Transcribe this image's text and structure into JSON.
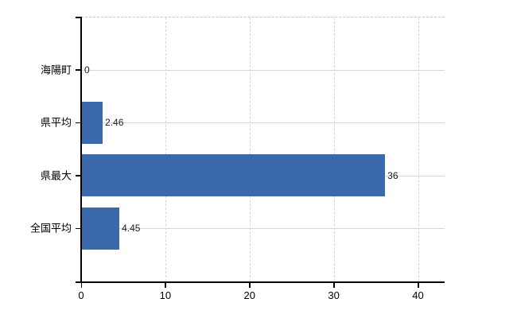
{
  "chart_data": {
    "type": "bar",
    "orientation": "horizontal",
    "title": "",
    "xlabel": "",
    "ylabel": "",
    "categories": [
      "海陽町",
      "県平均",
      "県最大",
      "全国平均"
    ],
    "values": [
      0,
      2.46,
      36,
      4.45
    ],
    "value_labels": [
      "0",
      "2.46",
      "36",
      "4.45"
    ],
    "x_ticks": [
      0,
      10,
      20,
      30,
      40
    ],
    "x_tick_labels": [
      "0",
      "10",
      "20",
      "30",
      "40"
    ],
    "xlim": [
      0,
      43.2
    ],
    "legend": null,
    "grid": {
      "horizontal_solid_at_rows": true,
      "vertical_dashed_at_ticks": true,
      "top_border_dashed": true
    },
    "colors": {
      "bar": "#3b6aab",
      "axis": "#000000",
      "tick": "#000000",
      "h_gridline": "#d3dcd3",
      "v_gridline": "#d9d2d7",
      "plot_top_border": "#c9c5c9",
      "category_text": "#000000",
      "tick_text": "#000000",
      "data_label_text": "#1c1c1c",
      "background": "#ffffff"
    }
  }
}
